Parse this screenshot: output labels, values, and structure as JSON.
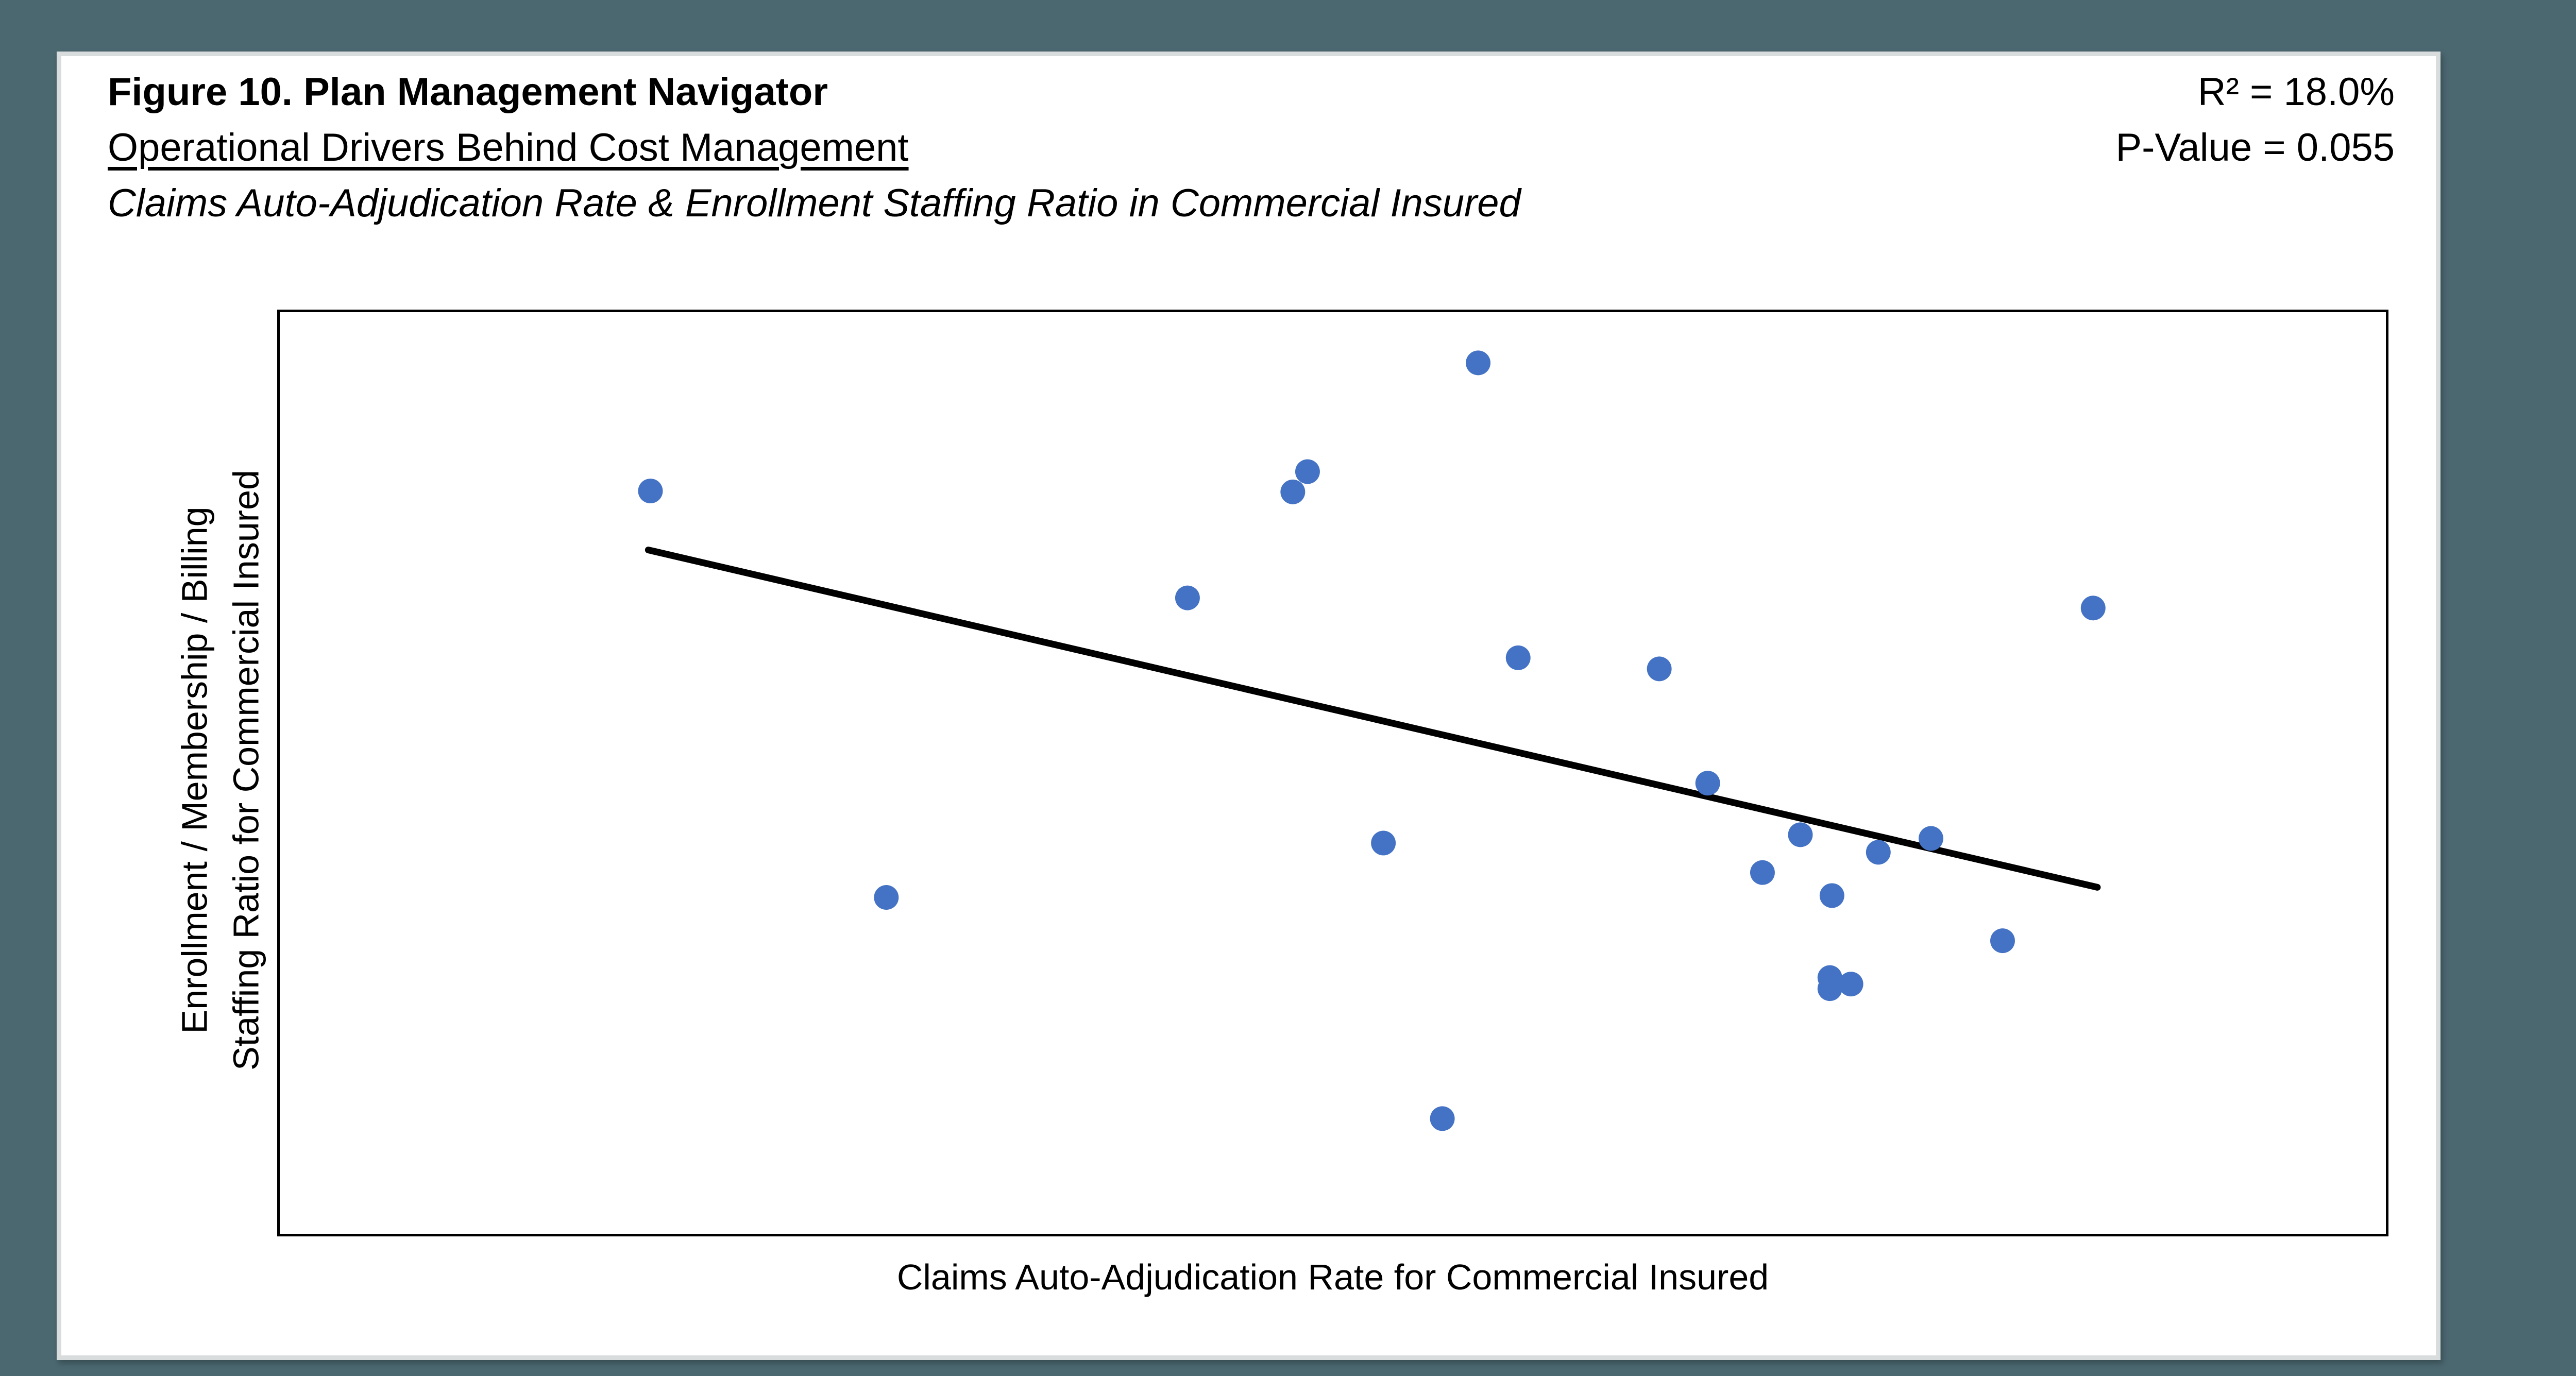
{
  "header": {
    "title": "Figure 10. Plan Management Navigator",
    "subtitle": "Operational Drivers Behind Cost Management",
    "description": "Claims Auto-Adjudication Rate & Enrollment Staffing Ratio in Commercial Insured",
    "r_squared_text": "R² = 18.0%",
    "p_value_text": "P-Value = 0.055"
  },
  "chart_data": {
    "type": "scatter",
    "title": "Claims Auto-Adjudication Rate & Enrollment Staffing Ratio in Commercial Insured",
    "xlabel": "Claims Auto-Adjudication Rate for Commercial Insured",
    "ylabel_lines": [
      "Enrollment / Membership / Billing",
      "Staffing Ratio for Commercial Insured"
    ],
    "axis_tick_labels": "none",
    "xlim_percent": [
      0,
      100
    ],
    "ylim_percent": [
      0,
      100
    ],
    "grid": false,
    "legend": "none",
    "stats": {
      "r_squared_percent": 18.0,
      "p_value": 0.055
    },
    "points_percent": [
      [
        17.6,
        80.6
      ],
      [
        48.1,
        80.5
      ],
      [
        48.8,
        82.7
      ],
      [
        56.9,
        94.5
      ],
      [
        43.1,
        69.0
      ],
      [
        58.8,
        62.5
      ],
      [
        65.5,
        61.3
      ],
      [
        86.1,
        67.9
      ],
      [
        67.8,
        48.9
      ],
      [
        72.2,
        43.3
      ],
      [
        75.9,
        41.4
      ],
      [
        78.4,
        42.9
      ],
      [
        70.4,
        39.2
      ],
      [
        73.7,
        36.7
      ],
      [
        28.8,
        36.5
      ],
      [
        52.4,
        42.4
      ],
      [
        73.6,
        27.8
      ],
      [
        73.6,
        26.6
      ],
      [
        74.6,
        27.1
      ],
      [
        81.8,
        31.8
      ],
      [
        55.2,
        12.5
      ]
    ],
    "trendline_percent": {
      "x1": 17.5,
      "y1": 74.2,
      "x2": 86.3,
      "y2": 37.6
    },
    "point_color": "#4472C4",
    "trendline_color": "#000000",
    "point_radius_percent_of_height": 1.34,
    "trendline_width_percent_of_height": 0.73
  }
}
